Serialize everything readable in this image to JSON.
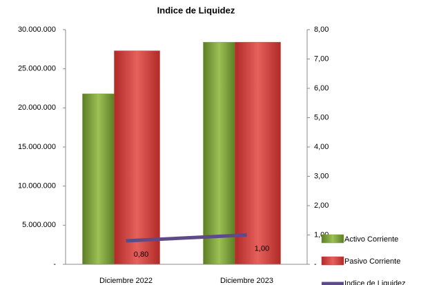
{
  "chart_data": {
    "type": "bar",
    "title": "Indice de Liquidez",
    "categories": [
      "Diciembre 2022",
      "Diciembre 2023"
    ],
    "series": [
      {
        "name": "Activo Corriente",
        "color": "#7ea23c",
        "values": [
          21800000,
          28400000
        ]
      },
      {
        "name": "Pasivo Corriente",
        "color": "#d63d3b",
        "values": [
          27300000,
          28400000
        ]
      },
      {
        "name": "Indice de Liquidez",
        "color": "#5e4a8a",
        "type": "line",
        "axis": "y2",
        "values": [
          0.8,
          1.0
        ],
        "value_labels": [
          "0,80",
          "1,00"
        ]
      }
    ],
    "ylim": [
      0,
      30000000
    ],
    "yticks": [
      {
        "value": 0,
        "label": "-"
      },
      {
        "value": 5000000,
        "label": "5.000.000"
      },
      {
        "value": 10000000,
        "label": "10.000.000"
      },
      {
        "value": 15000000,
        "label": "15.000.000"
      },
      {
        "value": 20000000,
        "label": "20.000.000"
      },
      {
        "value": 25000000,
        "label": "25.000.000"
      },
      {
        "value": 30000000,
        "label": "30.000.000"
      }
    ],
    "y2lim": [
      0,
      8
    ],
    "y2ticks": [
      {
        "value": 0,
        "label": "-"
      },
      {
        "value": 1,
        "label": "1,00"
      },
      {
        "value": 2,
        "label": "2,00"
      },
      {
        "value": 3,
        "label": "3,00"
      },
      {
        "value": 4,
        "label": "4,00"
      },
      {
        "value": 5,
        "label": "5,00"
      },
      {
        "value": 6,
        "label": "6,00"
      },
      {
        "value": 7,
        "label": "7,00"
      },
      {
        "value": 8,
        "label": "8,00"
      }
    ],
    "legend": "right"
  }
}
